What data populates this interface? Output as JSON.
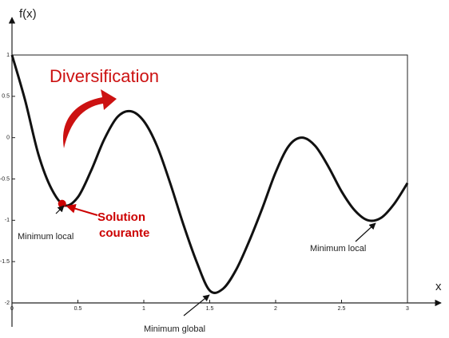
{
  "chart_data": {
    "type": "line",
    "y_label": "f(x)",
    "x_label": "x",
    "x": [
      0,
      0.1,
      0.2,
      0.3,
      0.4,
      0.5,
      0.6,
      0.7,
      0.8,
      0.9,
      1.0,
      1.1,
      1.2,
      1.3,
      1.4,
      1.5,
      1.6,
      1.7,
      1.8,
      1.9,
      2.0,
      2.1,
      2.2,
      2.3,
      2.4,
      2.5,
      2.6,
      2.7,
      2.8,
      2.9,
      3.0
    ],
    "series": [
      {
        "color": "#111111",
        "values": [
          1,
          0.45,
          -0.2,
          -0.62,
          -0.82,
          -0.72,
          -0.4,
          -0.02,
          0.25,
          0.32,
          0.2,
          -0.1,
          -0.55,
          -1.05,
          -1.5,
          -1.85,
          -1.83,
          -1.6,
          -1.25,
          -0.85,
          -0.42,
          -0.1,
          0,
          -0.1,
          -0.35,
          -0.65,
          -0.88,
          -1.0,
          -0.97,
          -0.8,
          -0.55
        ]
      }
    ],
    "xlim": [
      0,
      3
    ],
    "ylim": [
      -2,
      1
    ],
    "xticks": [
      0,
      0.5,
      1,
      1.5,
      2,
      2.5,
      3
    ],
    "yticks": [
      -2,
      -1.5,
      -1,
      -0.5,
      0,
      0.5,
      1
    ],
    "highlight": {
      "x": 0.38,
      "y": -0.8,
      "color": "#cc0000",
      "label": [
        "Solution",
        "courante"
      ]
    },
    "annotations": [
      "Minimum local",
      "Minimum global",
      "Minimum local"
    ],
    "heading": "Diversification"
  }
}
